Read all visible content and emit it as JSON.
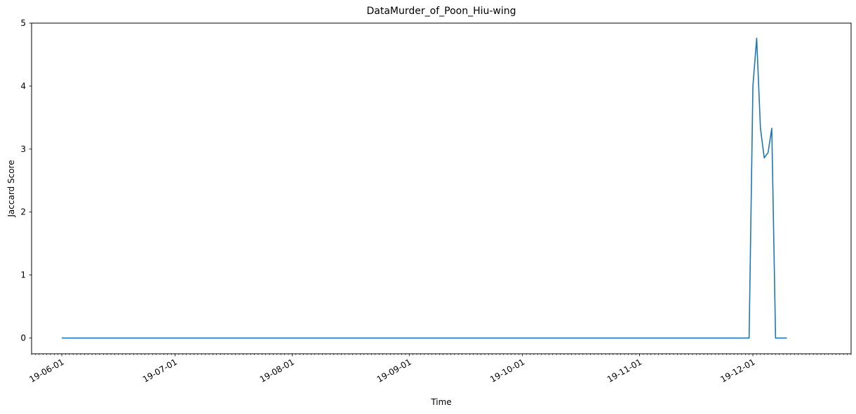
{
  "chart_data": {
    "type": "line",
    "title": "DataMurder_of_Poon_Hiu-wing",
    "xlabel": "Time",
    "ylabel": "Jaccard Score",
    "ylim": [
      -0.25,
      5.0
    ],
    "xlim": [
      "2019-05-24",
      "2019-12-27"
    ],
    "yticks": [
      0,
      1,
      2,
      3,
      4,
      5
    ],
    "xticks": [
      {
        "date": "2019-06-01",
        "label": "19-06-01"
      },
      {
        "date": "2019-07-01",
        "label": "19-07-01"
      },
      {
        "date": "2019-08-01",
        "label": "19-08-01"
      },
      {
        "date": "2019-09-01",
        "label": "19-09-01"
      },
      {
        "date": "2019-10-01",
        "label": "19-10-01"
      },
      {
        "date": "2019-11-01",
        "label": "19-11-01"
      },
      {
        "date": "2019-12-01",
        "label": "19-12-01"
      }
    ],
    "minor_ticks": "daily",
    "grid": false,
    "series": [
      {
        "color": "#1f77b4",
        "points": [
          {
            "x": "2019-06-01",
            "y": 0
          },
          {
            "x": "2019-11-30",
            "y": 0
          },
          {
            "x": "2019-12-01",
            "y": 4.0
          },
          {
            "x": "2019-12-02",
            "y": 4.76
          },
          {
            "x": "2019-12-03",
            "y": 3.33
          },
          {
            "x": "2019-12-04",
            "y": 2.86
          },
          {
            "x": "2019-12-05",
            "y": 2.94
          },
          {
            "x": "2019-12-06",
            "y": 3.33
          },
          {
            "x": "2019-12-07",
            "y": 0
          },
          {
            "x": "2019-12-10",
            "y": 0
          }
        ]
      }
    ]
  }
}
